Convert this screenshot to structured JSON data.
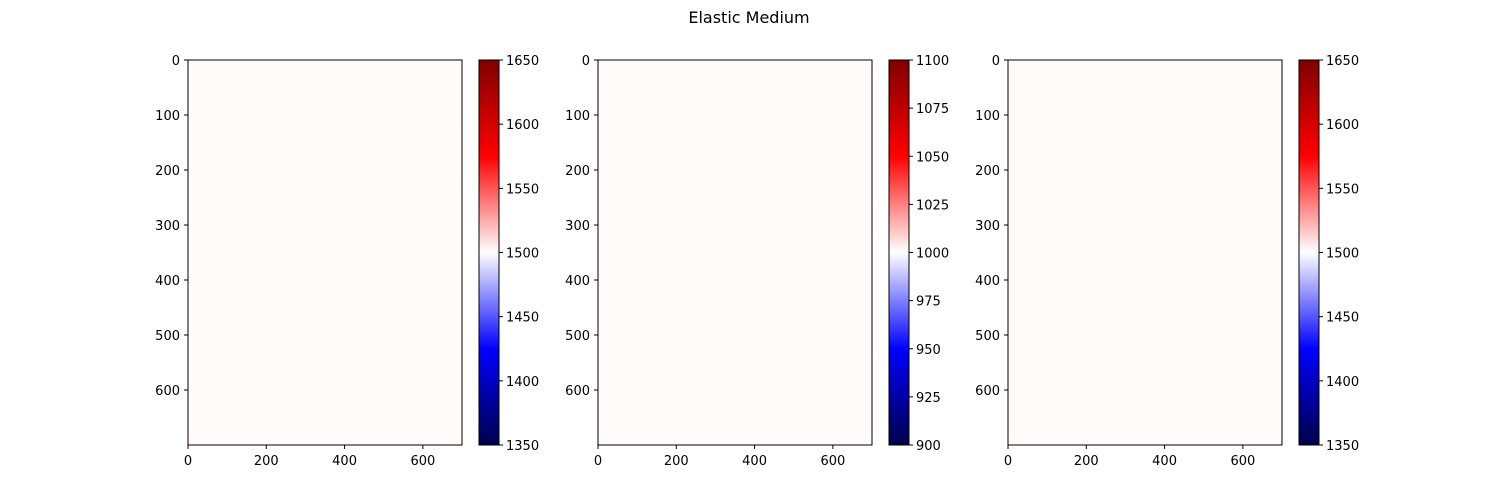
{
  "figure": {
    "title": "Elastic Medium"
  },
  "chart_data": [
    {
      "type": "heatmap",
      "xticks": [
        "0",
        "200",
        "400",
        "600"
      ],
      "yticks": [
        "0",
        "100",
        "200",
        "300",
        "400",
        "500",
        "600"
      ],
      "xlim": [
        0,
        700
      ],
      "ylim": [
        700,
        0
      ],
      "fill_value": 1500,
      "colormap": "seismic",
      "colorbar": {
        "min": 1350,
        "max": 1650,
        "ticks": [
          "1350",
          "1400",
          "1450",
          "1500",
          "1550",
          "1600",
          "1650"
        ]
      }
    },
    {
      "type": "heatmap",
      "xticks": [
        "0",
        "200",
        "400",
        "600"
      ],
      "yticks": [
        "0",
        "100",
        "200",
        "300",
        "400",
        "500",
        "600"
      ],
      "xlim": [
        0,
        700
      ],
      "ylim": [
        700,
        0
      ],
      "fill_value": 1000,
      "colormap": "seismic",
      "colorbar": {
        "min": 900,
        "max": 1100,
        "ticks": [
          "900",
          "925",
          "950",
          "975",
          "1000",
          "1025",
          "1050",
          "1075",
          "1100"
        ]
      }
    },
    {
      "type": "heatmap",
      "xticks": [
        "0",
        "200",
        "400",
        "600"
      ],
      "yticks": [
        "0",
        "100",
        "200",
        "300",
        "400",
        "500",
        "600"
      ],
      "xlim": [
        0,
        700
      ],
      "ylim": [
        700,
        0
      ],
      "fill_value": 1500,
      "colormap": "seismic",
      "colorbar": {
        "min": 1350,
        "max": 1650,
        "ticks": [
          "1350",
          "1400",
          "1450",
          "1500",
          "1550",
          "1600",
          "1650"
        ]
      }
    }
  ],
  "colors": {
    "image_fill": "#fffbfb",
    "seismic_stops": [
      "#00004c",
      "#0000ff",
      "#ffffff",
      "#ff0000",
      "#7f0000"
    ]
  }
}
